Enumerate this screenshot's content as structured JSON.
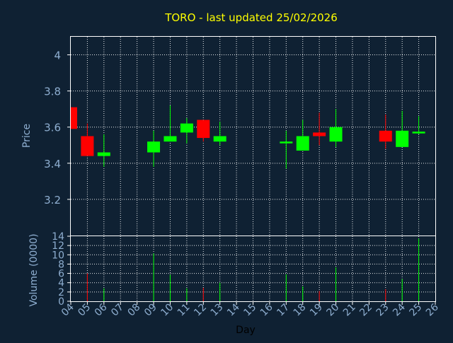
{
  "colors": {
    "background": "#0f2133",
    "title": "#ffff00",
    "axis_text": "#8eaed0",
    "frame": "#ffffff",
    "grid": "#ffffff",
    "up": "#00ff00",
    "down": "#ff0000",
    "wick_neutral": "#bbbbbb"
  },
  "chart_data": [
    {
      "type": "candlestick",
      "title": "TORO - last updated 25/02/2026",
      "xlabel": "",
      "ylabel": "Price",
      "ylim": [
        3.0,
        4.1
      ],
      "yticks": [
        3.2,
        3.4,
        3.6,
        3.8,
        4
      ],
      "ytick_labels": [
        "3.2",
        "3.4",
        "3.6",
        "3.8",
        "4"
      ],
      "grid": true,
      "candles": [
        {
          "day": "04",
          "open": 3.71,
          "high": 3.71,
          "low": 3.59,
          "close": 3.59
        },
        {
          "day": "05",
          "open": 3.55,
          "high": 3.62,
          "low": 3.44,
          "close": 3.44
        },
        {
          "day": "06",
          "open": 3.44,
          "high": 3.56,
          "low": 3.38,
          "close": 3.46
        },
        {
          "day": "09",
          "open": 3.46,
          "high": 3.58,
          "low": 3.38,
          "close": 3.52
        },
        {
          "day": "10",
          "open": 3.52,
          "high": 3.72,
          "low": 3.52,
          "close": 3.55
        },
        {
          "day": "11",
          "open": 3.57,
          "high": 3.65,
          "low": 3.51,
          "close": 3.62
        },
        {
          "day": "12",
          "open": 3.64,
          "high": 3.64,
          "low": 3.52,
          "close": 3.54
        },
        {
          "day": "13",
          "open": 3.52,
          "high": 3.63,
          "low": 3.5,
          "close": 3.55
        },
        {
          "day": "17",
          "open": 3.51,
          "high": 3.58,
          "low": 3.37,
          "close": 3.52
        },
        {
          "day": "18",
          "open": 3.47,
          "high": 3.64,
          "low": 3.47,
          "close": 3.55
        },
        {
          "day": "19",
          "open": 3.57,
          "high": 3.68,
          "low": 3.5,
          "close": 3.55
        },
        {
          "day": "20",
          "open": 3.52,
          "high": 3.7,
          "low": 3.49,
          "close": 3.6
        },
        {
          "day": "23",
          "open": 3.58,
          "high": 3.67,
          "low": 3.48,
          "close": 3.52
        },
        {
          "day": "24",
          "open": 3.49,
          "high": 3.69,
          "low": 3.49,
          "close": 3.58
        },
        {
          "day": "25",
          "open": 3.565,
          "high": 3.66,
          "low": 3.56,
          "close": 3.575
        }
      ]
    },
    {
      "type": "bar",
      "title": "",
      "xlabel": "Day",
      "ylabel": "Volume (0000)",
      "ylim": [
        0,
        14
      ],
      "yticks": [
        0,
        2,
        4,
        6,
        8,
        10,
        12,
        14
      ],
      "ytick_labels": [
        "0",
        "2",
        "4",
        "6",
        "8",
        "10",
        "12",
        "14"
      ],
      "grid": true,
      "categories": [
        "04",
        "05",
        "06",
        "07",
        "08",
        "09",
        "10",
        "11",
        "12",
        "13",
        "14",
        "15",
        "16",
        "17",
        "18",
        "19",
        "20",
        "21",
        "22",
        "23",
        "24",
        "25",
        "26"
      ],
      "bars": [
        {
          "day": "05",
          "value": 6.0,
          "direction": "down"
        },
        {
          "day": "06",
          "value": 2.8,
          "direction": "up"
        },
        {
          "day": "09",
          "value": 10.3,
          "direction": "up"
        },
        {
          "day": "10",
          "value": 5.7,
          "direction": "up"
        },
        {
          "day": "11",
          "value": 2.8,
          "direction": "up"
        },
        {
          "day": "12",
          "value": 2.9,
          "direction": "down"
        },
        {
          "day": "13",
          "value": 4.0,
          "direction": "up"
        },
        {
          "day": "17",
          "value": 5.8,
          "direction": "up"
        },
        {
          "day": "18",
          "value": 3.2,
          "direction": "up"
        },
        {
          "day": "19",
          "value": 2.2,
          "direction": "down"
        },
        {
          "day": "20",
          "value": 7.3,
          "direction": "up"
        },
        {
          "day": "23",
          "value": 2.6,
          "direction": "down"
        },
        {
          "day": "24",
          "value": 4.8,
          "direction": "up"
        },
        {
          "day": "25",
          "value": 13.5,
          "direction": "up"
        }
      ]
    }
  ]
}
